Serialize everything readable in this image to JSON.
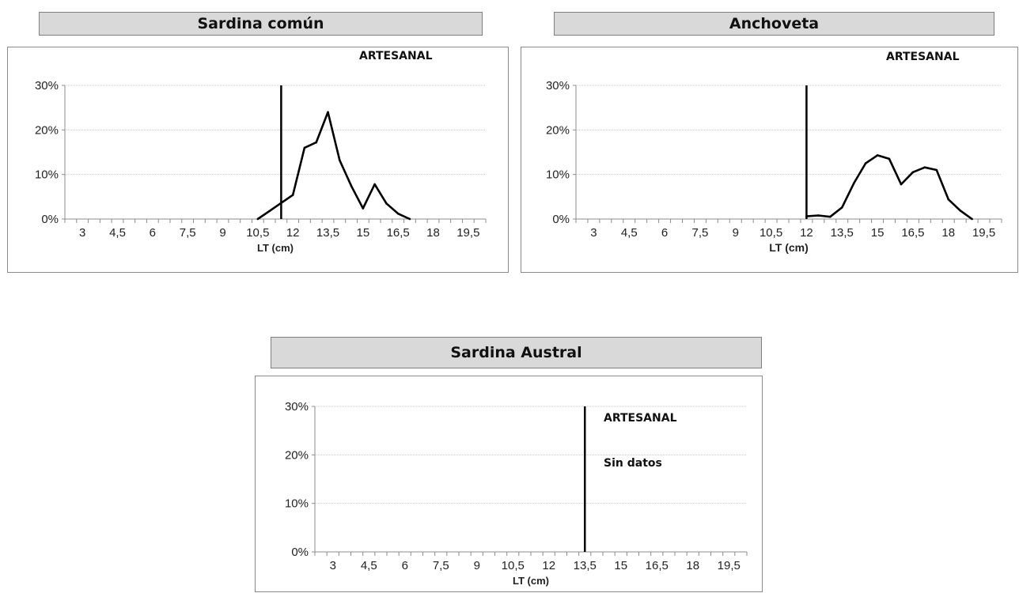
{
  "chart_data": [
    {
      "type": "line",
      "title": "Sardina común",
      "xlabel": "LT (cm)",
      "ylabel": "",
      "ylim": [
        0,
        30
      ],
      "yticks": [
        "0%",
        "10%",
        "20%",
        "30%"
      ],
      "xticks": [
        "3",
        "4,5",
        "6",
        "7,5",
        "9",
        "10,5",
        "12",
        "13,5",
        "15",
        "16,5",
        "18",
        "19,5"
      ],
      "annotations": [
        "ARTESANAL"
      ],
      "reference_line_x": 11.5,
      "grid": true,
      "x": [
        10.5,
        11,
        11.5,
        12,
        12.5,
        13,
        13.5,
        14,
        14.5,
        15,
        15.5,
        16,
        16.5,
        17
      ],
      "y": [
        0,
        1.8,
        3.6,
        5.4,
        16,
        17.2,
        24,
        13.2,
        7.4,
        2.4,
        7.8,
        3.5,
        1.2,
        0
      ]
    },
    {
      "type": "line",
      "title": "Anchoveta",
      "xlabel": "LT (cm)",
      "ylabel": "",
      "ylim": [
        0,
        30
      ],
      "yticks": [
        "0%",
        "10%",
        "20%",
        "30%"
      ],
      "xticks": [
        "3",
        "4,5",
        "6",
        "7,5",
        "9",
        "10,5",
        "12",
        "13,5",
        "15",
        "16,5",
        "18",
        "19,5"
      ],
      "annotations": [
        "ARTESANAL"
      ],
      "reference_line_x": 12,
      "grid": true,
      "x": [
        12,
        12.5,
        13,
        13.5,
        14,
        14.5,
        15,
        15.5,
        16,
        16.5,
        17,
        17.5,
        18,
        18.5,
        19
      ],
      "y": [
        0.6,
        0.8,
        0.5,
        2.6,
        8,
        12.5,
        14.3,
        13.5,
        7.8,
        10.5,
        11.6,
        11,
        4.4,
        1.9,
        0
      ]
    },
    {
      "type": "line",
      "title": "Sardina Austral",
      "xlabel": "LT (cm)",
      "ylabel": "",
      "ylim": [
        0,
        30
      ],
      "yticks": [
        "0%",
        "10%",
        "20%",
        "30%"
      ],
      "xticks": [
        "3",
        "4,5",
        "6",
        "7,5",
        "9",
        "10,5",
        "12",
        "13,5",
        "15",
        "16,5",
        "18",
        "19,5"
      ],
      "annotations": [
        "ARTESANAL",
        "Sin datos"
      ],
      "reference_line_x": 13.5,
      "grid": true,
      "x": [],
      "y": []
    }
  ]
}
